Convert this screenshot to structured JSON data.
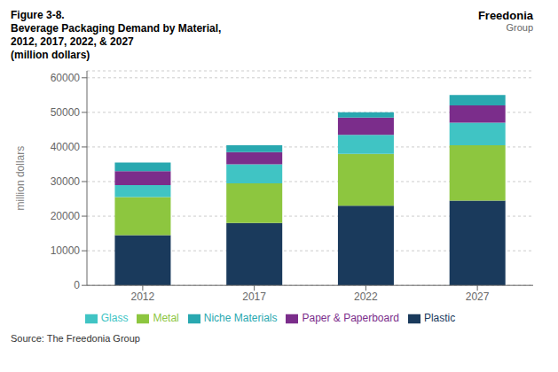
{
  "chart_data": {
    "type": "bar",
    "stacked": true,
    "title": "Figure 3-8.\nBeverage Packaging Demand by Material,\n2012, 2017, 2022, & 2027\n(million dollars)",
    "y_label": "million dollars",
    "categories": [
      "2012",
      "2017",
      "2022",
      "2027"
    ],
    "series": [
      {
        "name": "Plastic",
        "color": "#1a3a5c",
        "values": [
          14500,
          18000,
          23000,
          24500
        ]
      },
      {
        "name": "Metal",
        "color": "#8dc63f",
        "values": [
          11000,
          11500,
          15000,
          16000
        ]
      },
      {
        "name": "Glass",
        "color": "#40c4c4",
        "values": [
          3500,
          5500,
          5500,
          6500
        ]
      },
      {
        "name": "Paper & Paperboard",
        "color": "#7b2d8b",
        "values": [
          4000,
          3500,
          5000,
          5000
        ]
      },
      {
        "name": "Niche Materials",
        "color": "#29a8b0",
        "values": [
          2500,
          2000,
          1500,
          3000
        ]
      }
    ],
    "ylim": [
      0,
      62000
    ],
    "yticks": [
      0,
      10000,
      20000,
      30000,
      40000,
      50000,
      60000
    ],
    "grid": true,
    "legend": "bottom",
    "annotations": [
      "Source: The Freedonia Group",
      "Freedonia",
      "Group"
    ]
  }
}
